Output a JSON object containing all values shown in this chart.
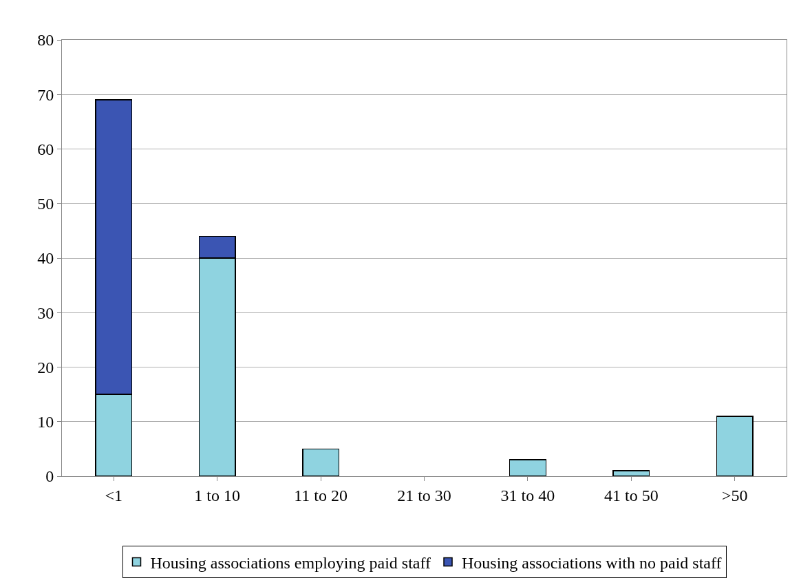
{
  "chart_data": {
    "type": "bar",
    "stacked": true,
    "categories": [
      "<1",
      "1 to 10",
      "11 to 20",
      "21 to 30",
      "31 to 40",
      "41 to 50",
      ">50"
    ],
    "series": [
      {
        "name": "Housing associations employing paid staff",
        "color": "#8fd3e0",
        "values": [
          15,
          40,
          5,
          null,
          3,
          1,
          11
        ]
      },
      {
        "name": "Housing associations with no paid staff",
        "color": "#3b55b3",
        "values": [
          54,
          4,
          null,
          null,
          null,
          null,
          null
        ]
      }
    ],
    "ylim": [
      0,
      80
    ],
    "yticks": [
      0,
      10,
      20,
      30,
      40,
      50,
      60,
      70,
      80
    ],
    "grid": "y",
    "legend": "bottom"
  }
}
